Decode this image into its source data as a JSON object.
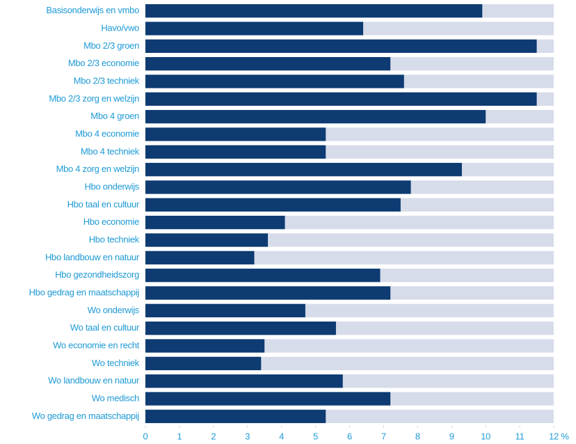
{
  "chart_data": {
    "type": "barh",
    "categories": [
      "Basisonderwijs en vmbo",
      "Havo/vwo",
      "Mbo 2/3 groen",
      "Mbo 2/3 economie",
      "Mbo 2/3 techniek",
      "Mbo 2/3 zorg en welzijn",
      "Mbo 4 groen",
      "Mbo 4 economie",
      "Mbo 4 techniek",
      "Mbo 4 zorg en welzijn",
      "Hbo onderwijs",
      "Hbo taal en cultuur",
      "Hbo economie",
      "Hbo techniek",
      "Hbo landbouw en natuur",
      "Hbo gezondheidszorg",
      "Hbo gedrag en maatschappij",
      "Wo onderwijs",
      "Wo taal en cultuur",
      "Wo economie en recht",
      "Wo techniek",
      "Wo landbouw en natuur",
      "Wo medisch",
      "Wo gedrag en maatschappij"
    ],
    "values": [
      9.9,
      6.4,
      11.5,
      7.2,
      7.6,
      11.5,
      10.0,
      5.3,
      5.3,
      9.3,
      7.8,
      7.5,
      4.1,
      3.6,
      3.2,
      6.9,
      7.2,
      4.7,
      5.6,
      3.5,
      3.4,
      5.8,
      7.2,
      5.3
    ],
    "color": "#0d3b72",
    "track_color": "#d6dcea",
    "text_color": "#1e9ad6",
    "x_label": "%",
    "xlim": [
      0,
      12
    ],
    "xticks": [
      0,
      1,
      2,
      3,
      4,
      5,
      6,
      7,
      8,
      9,
      10,
      11,
      12
    ]
  }
}
